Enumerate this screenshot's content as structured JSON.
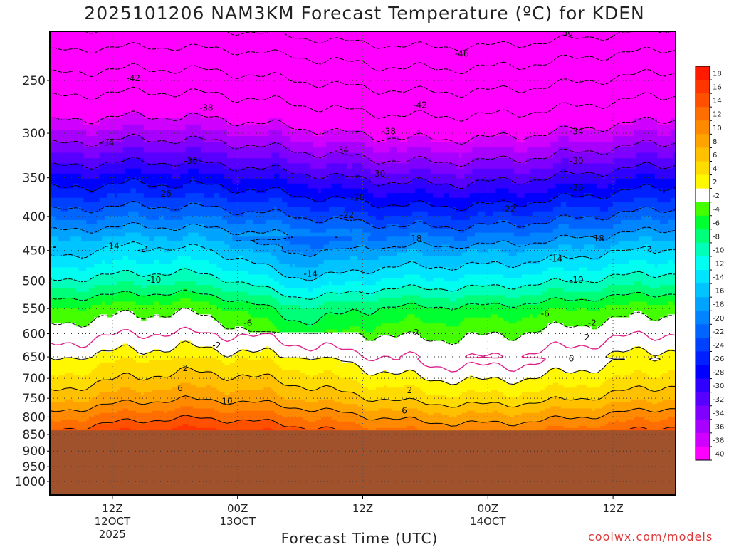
{
  "title": "2025101206 NAM3KM Forecast Temperature (ºC) for KDEN",
  "xlabel": "Forecast Time (UTC)",
  "credit": "coolwx.com/models",
  "chart_data": {
    "type": "heatmap",
    "title": "2025101206 NAM3KM Forecast Temperature (ºC) for KDEN",
    "xlabel": "Forecast Time (UTC)",
    "ylabel": "",
    "x_range_hours": [
      0,
      60
    ],
    "x_ticks": [
      {
        "hour": 6,
        "label": "12Z",
        "sub": [
          "12OCT",
          "2025"
        ]
      },
      {
        "hour": 18,
        "label": "00Z",
        "sub": [
          "13OCT"
        ]
      },
      {
        "hour": 30,
        "label": "12Z",
        "sub": []
      },
      {
        "hour": 42,
        "label": "00Z",
        "sub": [
          "14OCT"
        ]
      },
      {
        "hour": 54,
        "label": "12Z",
        "sub": []
      }
    ],
    "y_ticks": [
      250,
      300,
      350,
      400,
      450,
      500,
      550,
      600,
      650,
      700,
      750,
      800,
      850,
      900,
      950,
      1000
    ],
    "y_range_hpa": [
      1000,
      200
    ],
    "y_scale": "pressure (hPa)",
    "grid": true,
    "surface_pressure_hpa": 838,
    "colorbar": {
      "labels": [
        "18",
        "16",
        "14",
        "12",
        "10",
        "8",
        "6",
        "4",
        "2",
        "-2",
        "-4",
        "-6",
        "-8",
        "-10",
        "-12",
        "-14",
        "-16",
        "-18",
        "-20",
        "-22",
        "-24",
        "-26",
        "-28",
        "-30",
        "-32",
        "-34",
        "-36",
        "-38",
        "-40"
      ],
      "colors": [
        "#ff1a00",
        "#ff3500",
        "#ff5000",
        "#ff6e00",
        "#ff8a00",
        "#ffa300",
        "#ffc000",
        "#ffdc00",
        "#fff800",
        "#ffffff",
        "#44ff00",
        "#00ff30",
        "#00ff78",
        "#00ffb8",
        "#00fff0",
        "#00e4ff",
        "#00c4ff",
        "#00a4ff",
        "#0084ff",
        "#0064ff",
        "#0040ff",
        "#0020ff",
        "#0000ff",
        "#3000ff",
        "#5800ff",
        "#8000ff",
        "#a800ff",
        "#d000ff",
        "#ff00ff"
      ]
    },
    "contour_labels": [
      {
        "value": -50,
        "hour": 26.5,
        "hpa": 205
      },
      {
        "value": -50,
        "hour": 49.5,
        "hpa": 212
      },
      {
        "value": -46,
        "hour": 39.5,
        "hpa": 228
      },
      {
        "value": -42,
        "hour": 8,
        "hpa": 248
      },
      {
        "value": -42,
        "hour": 35.5,
        "hpa": 272
      },
      {
        "value": -38,
        "hour": 15,
        "hpa": 275
      },
      {
        "value": -38,
        "hour": 32.5,
        "hpa": 298
      },
      {
        "value": -34,
        "hour": 5.5,
        "hpa": 310
      },
      {
        "value": -34,
        "hour": 28,
        "hpa": 318
      },
      {
        "value": -34,
        "hour": 50.5,
        "hpa": 298
      },
      {
        "value": -30,
        "hour": 13.5,
        "hpa": 330
      },
      {
        "value": -30,
        "hour": 31.5,
        "hpa": 345
      },
      {
        "value": -30,
        "hour": 50.5,
        "hpa": 330
      },
      {
        "value": -26,
        "hour": 11,
        "hpa": 370
      },
      {
        "value": -26,
        "hour": 29.5,
        "hpa": 375
      },
      {
        "value": -26,
        "hour": 50.5,
        "hpa": 362
      },
      {
        "value": -22,
        "hour": 28.5,
        "hpa": 398
      },
      {
        "value": -22,
        "hour": 44,
        "hpa": 390
      },
      {
        "value": -18,
        "hour": 35,
        "hpa": 432
      },
      {
        "value": -18,
        "hour": 52.5,
        "hpa": 432
      },
      {
        "value": -14,
        "hour": 6,
        "hpa": 443
      },
      {
        "value": -14,
        "hour": 25,
        "hpa": 488
      },
      {
        "value": -14,
        "hour": 48.5,
        "hpa": 463
      },
      {
        "value": -10,
        "hour": 10,
        "hpa": 498
      },
      {
        "value": -10,
        "hour": 50.5,
        "hpa": 498
      },
      {
        "value": -6,
        "hour": 19,
        "hpa": 578
      },
      {
        "value": -6,
        "hour": 47.5,
        "hpa": 560
      },
      {
        "value": -2,
        "hour": 52,
        "hpa": 578
      },
      {
        "value": -2,
        "hour": 16,
        "hpa": 625
      },
      {
        "value": -2,
        "hour": 35,
        "hpa": 598
      },
      {
        "value": 2,
        "hour": 13,
        "hpa": 676
      },
      {
        "value": 2,
        "hour": 34.5,
        "hpa": 730
      },
      {
        "value": 2,
        "hour": 51.5,
        "hpa": 608
      },
      {
        "value": 6,
        "hour": 12.5,
        "hpa": 724
      },
      {
        "value": 6,
        "hour": 34,
        "hpa": 783
      },
      {
        "value": 6,
        "hour": 50,
        "hpa": 654
      },
      {
        "value": 10,
        "hour": 17,
        "hpa": 758
      }
    ]
  }
}
